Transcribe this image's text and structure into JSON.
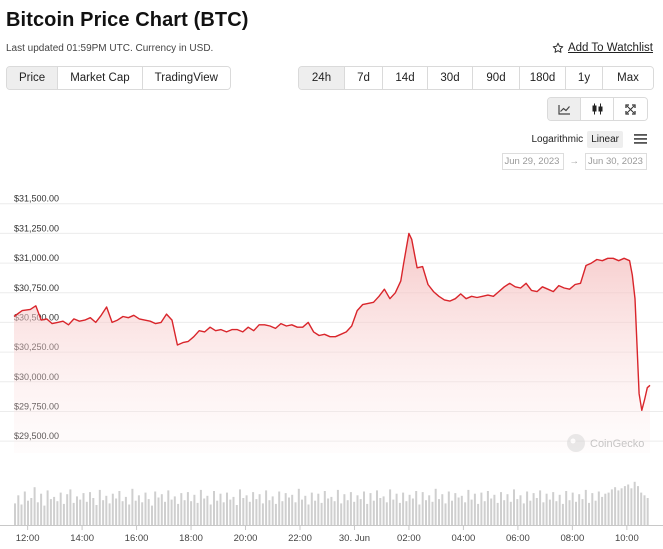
{
  "header": {
    "title": "Bitcoin Price Chart (BTC)",
    "updated": "Last updated 01:59PM UTC. Currency in USD.",
    "watchlist_label": "Add To Watchlist"
  },
  "view_tabs": [
    {
      "label": "Price",
      "active": true
    },
    {
      "label": "Market Cap",
      "active": false
    },
    {
      "label": "TradingView",
      "active": false
    }
  ],
  "range_tabs": [
    {
      "label": "24h",
      "active": true
    },
    {
      "label": "7d",
      "active": false
    },
    {
      "label": "14d",
      "active": false
    },
    {
      "label": "30d",
      "active": false
    },
    {
      "label": "90d",
      "active": false
    },
    {
      "label": "180d",
      "active": false
    },
    {
      "label": "1y",
      "active": false
    },
    {
      "label": "Max",
      "active": false
    }
  ],
  "chart_type_tabs": [
    {
      "icon": "line-chart-icon",
      "active": true
    },
    {
      "icon": "candlestick-icon",
      "active": false
    },
    {
      "icon": "fullscreen-icon",
      "active": false
    }
  ],
  "scale": {
    "logarithmic": "Logarithmic",
    "linear": "Linear",
    "active": "linear"
  },
  "date_range": {
    "from": "Jun 29, 2023",
    "to": "Jun 30, 2023",
    "separator": "→"
  },
  "watermark": "CoinGecko",
  "colors": {
    "line": "#d9252b",
    "fill": "#f3b5b5",
    "volume": "#cfcfcf",
    "grid": "#ececec"
  },
  "chart_data": {
    "type": "line",
    "ylabel": "",
    "xlabel": "",
    "ylim": [
      29400,
      31700
    ],
    "y_ticks": [
      {
        "value": 29500,
        "label": "$29,500.00"
      },
      {
        "value": 29750,
        "label": "$29,750.00"
      },
      {
        "value": 30000,
        "label": "$30,000.00"
      },
      {
        "value": 30250,
        "label": "$30,250.00"
      },
      {
        "value": 30500,
        "label": "$30,500.00"
      },
      {
        "value": 30750,
        "label": "$30,750.00"
      },
      {
        "value": 31000,
        "label": "$31,000.00"
      },
      {
        "value": 31250,
        "label": "$31,250.00"
      },
      {
        "value": 31500,
        "label": "$31,500.00"
      }
    ],
    "x_range": [
      11.5,
      34.85
    ],
    "x_ticks": [
      {
        "value": 12,
        "label": "12:00"
      },
      {
        "value": 14,
        "label": "14:00"
      },
      {
        "value": 16,
        "label": "16:00"
      },
      {
        "value": 18,
        "label": "18:00"
      },
      {
        "value": 20,
        "label": "20:00"
      },
      {
        "value": 22,
        "label": "22:00"
      },
      {
        "value": 24,
        "label": "30. Jun"
      },
      {
        "value": 26,
        "label": "02:00"
      },
      {
        "value": 28,
        "label": "04:00"
      },
      {
        "value": 30,
        "label": "06:00"
      },
      {
        "value": 32,
        "label": "08:00"
      },
      {
        "value": 34,
        "label": "10:00"
      }
    ],
    "series": [
      {
        "x": [
          11.5,
          11.8,
          12.1,
          12.3,
          12.5,
          12.7,
          12.9,
          13.1,
          13.3,
          13.5,
          13.7,
          13.9,
          14.1,
          14.3,
          14.5,
          14.7,
          14.9,
          15.1,
          15.3,
          15.5,
          15.7,
          15.9,
          16.1,
          16.3,
          16.5,
          16.7,
          16.9,
          17.1,
          17.3,
          17.5,
          17.7,
          17.9,
          18.1,
          18.3,
          18.5,
          18.7,
          18.9,
          19.1,
          19.3,
          19.5,
          19.7,
          19.9,
          20.1,
          20.3,
          20.5,
          20.7,
          20.9,
          21.1,
          21.3,
          21.5,
          21.7,
          21.9,
          22.1,
          22.3,
          22.5,
          22.7,
          22.9,
          23.1,
          23.3,
          23.5,
          23.7,
          23.9,
          24.1,
          24.3,
          24.5,
          24.7,
          24.9,
          25.1,
          25.3,
          25.5,
          25.7,
          25.8,
          25.9,
          26.0,
          26.1,
          26.3,
          26.5,
          26.7,
          26.9,
          27.1,
          27.3,
          27.5,
          27.7,
          27.9,
          28.1,
          28.3,
          28.5,
          28.7,
          28.9,
          29.1,
          29.3,
          29.5,
          29.7,
          29.9,
          30.1,
          30.3,
          30.5,
          30.7,
          30.9,
          31.1,
          31.3,
          31.5,
          31.7,
          31.9,
          32.1,
          32.3,
          32.5,
          32.7,
          32.9,
          33.1,
          33.3,
          33.5,
          33.7,
          33.9,
          34.1,
          34.2,
          34.3,
          34.45,
          34.55,
          34.65,
          34.75,
          34.85
        ],
        "y": [
          30550,
          30600,
          30610,
          30640,
          30520,
          30530,
          30490,
          30500,
          30510,
          30480,
          30530,
          30510,
          30520,
          30540,
          30500,
          30560,
          30630,
          30500,
          30520,
          30550,
          30540,
          30560,
          30530,
          30520,
          30510,
          30490,
          30500,
          30570,
          30520,
          30310,
          30330,
          30340,
          30380,
          30430,
          30420,
          30460,
          30430,
          30440,
          30420,
          30440,
          30440,
          30420,
          30460,
          30430,
          30480,
          30480,
          30470,
          30450,
          30490,
          30470,
          30480,
          30460,
          30460,
          30500,
          30420,
          30390,
          30400,
          30380,
          30380,
          30400,
          30420,
          30470,
          30600,
          30650,
          30660,
          30670,
          30720,
          30780,
          30700,
          30750,
          30850,
          30990,
          31120,
          31250,
          31200,
          30960,
          30970,
          30820,
          30760,
          30720,
          30690,
          30680,
          30700,
          30740,
          30700,
          30720,
          30710,
          30720,
          30730,
          30720,
          30760,
          30800,
          30830,
          30800,
          30790,
          30830,
          30770,
          30760,
          30800,
          30780,
          30760,
          30810,
          30790,
          30780,
          30820,
          30830,
          30980,
          31000,
          31030,
          31020,
          31040,
          31040,
          31020,
          31040,
          31020,
          30900,
          30700,
          29900,
          29760,
          29850,
          29950,
          29970
        ]
      }
    ],
    "volume": [
      40,
      55,
      38,
      62,
      45,
      50,
      70,
      42,
      58,
      36,
      64,
      48,
      52,
      44,
      60,
      39,
      57,
      66,
      41,
      53,
      47,
      59,
      43,
      61,
      50,
      37,
      65,
      46,
      54,
      40,
      58,
      49,
      63,
      44,
      52,
      38,
      67,
      45,
      55,
      42,
      60,
      48,
      36,
      62,
      51,
      57,
      43,
      64,
      47,
      53,
      39,
      59,
      46,
      61,
      44,
      56,
      41,
      65,
      49,
      54,
      38,
      63,
      45,
      58,
      42,
      60,
      47,
      52,
      37,
      66,
      50,
      55,
      43,
      61,
      48,
      57,
      40,
      64,
      46,
      53,
      39,
      62,
      44,
      59,
      51,
      56,
      42,
      67,
      47,
      54,
      38,
      60,
      45,
      58,
      41,
      63,
      49,
      52,
      44,
      65,
      40,
      57,
      46,
      61,
      43,
      55,
      48,
      62,
      39,
      59,
      45,
      64,
      50,
      53,
      42,
      66,
      47,
      58,
      41,
      60,
      44,
      56,
      49,
      63,
      38,
      61,
      46,
      55,
      43,
      67,
      48,
      57,
      40,
      62,
      45,
      59,
      51,
      54,
      42,
      65,
      47,
      58,
      39,
      60,
      44,
      63,
      49,
      56,
      41,
      61,
      46,
      57,
      43,
      66,
      48,
      55,
      40,
      62,
      45,
      59,
      50,
      64,
      42,
      58,
      47,
      61,
      44,
      56,
      39,
      63,
      46,
      60,
      43,
      57,
      48,
      65,
      41,
      59,
      45,
      62,
      52,
      58,
      60,
      66,
      70,
      64,
      68,
      72,
      75,
      68,
      80,
      72,
      60,
      55,
      50
    ]
  }
}
